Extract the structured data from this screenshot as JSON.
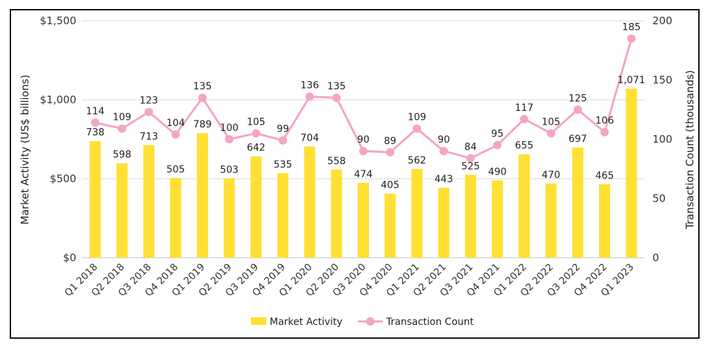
{
  "chart_data": {
    "type": "bar+line",
    "categories": [
      "Q1 2018",
      "Q2 2018",
      "Q3 2018",
      "Q4 2018",
      "Q1 2019",
      "Q2 2019",
      "Q3 2019",
      "Q4 2019",
      "Q1 2020",
      "Q2 2020",
      "Q3 2020",
      "Q4 2020",
      "Q1 2021",
      "Q2 2021",
      "Q3 2021",
      "Q4 2021",
      "Q1 2022",
      "Q2 2022",
      "Q3 2022",
      "Q4 2022",
      "Q1 2023"
    ],
    "bar_labels": [
      "738",
      "598",
      "713",
      "505",
      "789",
      "503",
      "642",
      "535",
      "704",
      "558",
      "474",
      "405",
      "562",
      "443",
      "525",
      "490",
      "655",
      "470",
      "697",
      "465",
      "1,071"
    ],
    "series": [
      {
        "name": "Market Activity",
        "type": "bar",
        "axis": "left",
        "values": [
          738,
          598,
          713,
          505,
          789,
          503,
          642,
          535,
          704,
          558,
          474,
          405,
          562,
          443,
          525,
          490,
          655,
          470,
          697,
          465,
          1071
        ]
      },
      {
        "name": "Transaction Count",
        "type": "line",
        "axis": "right",
        "values": [
          114,
          109,
          123,
          104,
          135,
          100,
          105,
          99,
          136,
          135,
          90,
          89,
          109,
          90,
          84,
          95,
          117,
          105,
          125,
          106,
          185
        ]
      }
    ],
    "y_left": {
      "label": "Market Activity (US$ billions)",
      "lim": [
        0,
        1500
      ],
      "ticks": [
        0,
        500,
        1000,
        1500
      ],
      "tick_labels": [
        "$0",
        "$500",
        "$1,000",
        "$1,500"
      ]
    },
    "y_right": {
      "label": "Transaction Count (thousands)",
      "lim": [
        0,
        200
      ],
      "ticks": [
        0,
        50,
        100,
        150,
        200
      ],
      "tick_labels": [
        "0",
        "50",
        "100",
        "150",
        "200"
      ]
    },
    "grid": "horizontal",
    "legend_position": "bottom-center",
    "colors": {
      "bar": "#FFE033",
      "line": "#F4A6BE",
      "grid": "#D9D9D9"
    }
  }
}
